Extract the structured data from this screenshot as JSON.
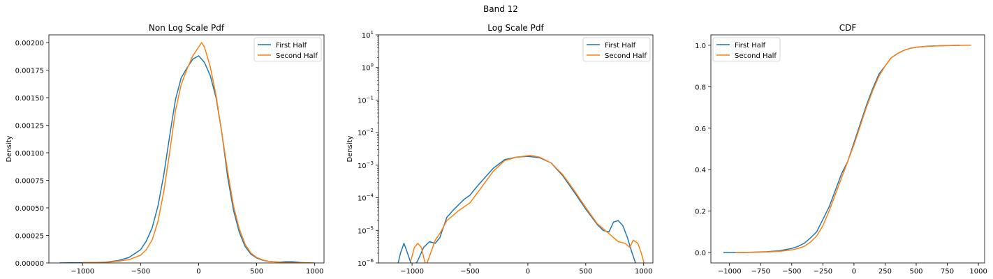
{
  "suptitle": "Band 12",
  "legend_labels": [
    "First Half",
    "Second Half"
  ],
  "colors": {
    "first": "#1f77b4",
    "second": "#ff7f0e",
    "frame": "#000000",
    "legend_border": "#cccccc"
  },
  "chart_data": [
    {
      "type": "line",
      "title": "Non Log Scale Pdf",
      "ylabel": "Density",
      "xlabel": "",
      "xlim": [
        -1290,
        1080
      ],
      "ylim": [
        0,
        0.00207
      ],
      "yscale": "linear",
      "xticks": [
        -1000,
        -500,
        0,
        500,
        1000
      ],
      "xtick_labels": [
        "−1000",
        "−500",
        "0",
        "500",
        "1000"
      ],
      "yticks": [
        0,
        0.00025,
        0.0005,
        0.00075,
        0.001,
        0.00125,
        0.0015,
        0.00175,
        0.002
      ],
      "ytick_labels": [
        "0.00000",
        "0.00025",
        "0.00050",
        "0.00075",
        "0.00100",
        "0.00125",
        "0.00150",
        "0.00175",
        "0.00200"
      ],
      "legend_loc": "upper right",
      "series": [
        {
          "name": "First Half",
          "points": [
            [
              -1200,
              3e-07
            ],
            [
              -1100,
              1e-06
            ],
            [
              -1000,
              1.5e-06
            ],
            [
              -900,
              3e-06
            ],
            [
              -800,
              7e-06
            ],
            [
              -700,
              2e-05
            ],
            [
              -600,
              5e-05
            ],
            [
              -500,
              0.00012
            ],
            [
              -450,
              0.0002
            ],
            [
              -400,
              0.00032
            ],
            [
              -350,
              0.00052
            ],
            [
              -300,
              0.0008
            ],
            [
              -250,
              0.00115
            ],
            [
              -200,
              0.00148
            ],
            [
              -150,
              0.00168
            ],
            [
              -100,
              0.00177
            ],
            [
              -50,
              0.00185
            ],
            [
              0,
              0.00188
            ],
            [
              50,
              0.00182
            ],
            [
              100,
              0.0017
            ],
            [
              150,
              0.0015
            ],
            [
              200,
              0.00118
            ],
            [
              250,
              0.00078
            ],
            [
              300,
              0.00048
            ],
            [
              350,
              0.00028
            ],
            [
              400,
              0.00015
            ],
            [
              450,
              8e-05
            ],
            [
              500,
              4.5e-05
            ],
            [
              550,
              2.5e-05
            ],
            [
              600,
              1.5e-05
            ],
            [
              650,
              1e-05
            ],
            [
              700,
              8e-06
            ],
            [
              750,
              1.2e-05
            ],
            [
              800,
              1.2e-05
            ],
            [
              850,
              7e-06
            ],
            [
              900,
              2e-06
            ],
            [
              950,
              0
            ]
          ]
        },
        {
          "name": "Second Half",
          "points": [
            [
              -1000,
              4e-06
            ],
            [
              -900,
              4e-06
            ],
            [
              -800,
              5e-06
            ],
            [
              -700,
              1.5e-05
            ],
            [
              -600,
              3e-05
            ],
            [
              -500,
              7e-05
            ],
            [
              -450,
              0.00012
            ],
            [
              -400,
              0.00021
            ],
            [
              -350,
              0.00038
            ],
            [
              -300,
              0.00065
            ],
            [
              -250,
              0.001
            ],
            [
              -200,
              0.00138
            ],
            [
              -150,
              0.00162
            ],
            [
              -100,
              0.00176
            ],
            [
              -50,
              0.00188
            ],
            [
              0,
              0.00196
            ],
            [
              25,
              0.002
            ],
            [
              50,
              0.00196
            ],
            [
              100,
              0.00178
            ],
            [
              150,
              0.00152
            ],
            [
              200,
              0.00118
            ],
            [
              250,
              0.00083
            ],
            [
              300,
              0.00052
            ],
            [
              350,
              0.00031
            ],
            [
              400,
              0.00017
            ],
            [
              450,
              9e-05
            ],
            [
              500,
              5e-05
            ],
            [
              550,
              2.8e-05
            ],
            [
              600,
              1.6e-05
            ],
            [
              650,
              1e-05
            ],
            [
              700,
              6e-06
            ],
            [
              800,
              3e-06
            ],
            [
              850,
              2e-06
            ],
            [
              900,
              3e-06
            ],
            [
              950,
              2e-06
            ],
            [
              1000,
              0
            ]
          ]
        }
      ]
    },
    {
      "type": "line",
      "title": "Log Scale Pdf",
      "ylabel": "Density",
      "xlabel": "",
      "xlim": [
        -1290,
        1080
      ],
      "ylim": [
        1e-06,
        10
      ],
      "yscale": "log",
      "xticks": [
        -1000,
        -500,
        0,
        500,
        1000
      ],
      "xtick_labels": [
        "−1000",
        "−500",
        "0",
        "500",
        "1000"
      ],
      "yticks": [
        1e-06,
        1e-05,
        0.0001,
        0.001,
        0.01,
        0.1,
        1,
        10
      ],
      "ytick_base": [
        "10",
        "10",
        "10",
        "10",
        "10",
        "10",
        "10",
        "10"
      ],
      "ytick_exp": [
        "−6",
        "−5",
        "−4",
        "−3",
        "−2",
        "−1",
        "0",
        "1"
      ],
      "legend_loc": "upper right",
      "series": [
        {
          "name": "First Half",
          "points": [
            [
              -1120,
              1e-06
            ],
            [
              -1100,
              2e-06
            ],
            [
              -1070,
              4e-06
            ],
            [
              -1040,
              2e-06
            ],
            [
              -1010,
              1e-06
            ],
            [
              -980,
              8e-07
            ],
            [
              -950,
              1.2e-06
            ],
            [
              -900,
              3e-06
            ],
            [
              -850,
              4.5e-06
            ],
            [
              -800,
              4e-06
            ],
            [
              -760,
              6e-06
            ],
            [
              -700,
              2.5e-05
            ],
            [
              -650,
              4e-05
            ],
            [
              -600,
              6e-05
            ],
            [
              -550,
              9e-05
            ],
            [
              -500,
              0.00012
            ],
            [
              -450,
              0.0002
            ],
            [
              -400,
              0.00032
            ],
            [
              -300,
              0.0008
            ],
            [
              -200,
              0.00148
            ],
            [
              -100,
              0.00177
            ],
            [
              0,
              0.00188
            ],
            [
              100,
              0.0017
            ],
            [
              200,
              0.00118
            ],
            [
              300,
              0.00048
            ],
            [
              400,
              0.00015
            ],
            [
              500,
              4.5e-05
            ],
            [
              600,
              1.5e-05
            ],
            [
              650,
              1e-05
            ],
            [
              700,
              9e-06
            ],
            [
              740,
              1.8e-05
            ],
            [
              780,
              2e-05
            ],
            [
              820,
              1.4e-05
            ],
            [
              860,
              6e-06
            ],
            [
              900,
              2e-06
            ],
            [
              930,
              1e-06
            ]
          ]
        },
        {
          "name": "Second Half",
          "points": [
            [
              -1010,
              1.2e-06
            ],
            [
              -980,
              3e-06
            ],
            [
              -950,
              4e-06
            ],
            [
              -920,
              3e-06
            ],
            [
              -900,
              1.5e-06
            ],
            [
              -880,
              8e-07
            ],
            [
              -800,
              5e-06
            ],
            [
              -760,
              8e-06
            ],
            [
              -700,
              2e-05
            ],
            [
              -650,
              2.8e-05
            ],
            [
              -600,
              4e-05
            ],
            [
              -500,
              7e-05
            ],
            [
              -400,
              0.00021
            ],
            [
              -300,
              0.00065
            ],
            [
              -200,
              0.00138
            ],
            [
              -100,
              0.00176
            ],
            [
              0,
              0.00196
            ],
            [
              25,
              0.002
            ],
            [
              100,
              0.00178
            ],
            [
              200,
              0.00118
            ],
            [
              300,
              0.00052
            ],
            [
              400,
              0.00017
            ],
            [
              500,
              5e-05
            ],
            [
              600,
              1.6e-05
            ],
            [
              700,
              8e-06
            ],
            [
              780,
              4.5e-06
            ],
            [
              840,
              4e-06
            ],
            [
              880,
              3e-06
            ],
            [
              910,
              5e-06
            ],
            [
              950,
              4e-06
            ],
            [
              980,
              2e-06
            ],
            [
              1010,
              8e-07
            ]
          ]
        }
      ]
    },
    {
      "type": "line",
      "title": "CDF",
      "ylabel": "",
      "xlabel": "",
      "xlim": [
        -1150,
        1050
      ],
      "ylim": [
        -0.05,
        1.05
      ],
      "yscale": "linear",
      "xticks": [
        -1000,
        -750,
        -500,
        -250,
        0,
        250,
        500,
        750,
        1000
      ],
      "xtick_labels": [
        "−1000",
        "−750",
        "−500",
        "−250",
        "0",
        "250",
        "500",
        "750",
        "1000"
      ],
      "yticks": [
        0,
        0.2,
        0.4,
        0.6,
        0.8,
        1.0
      ],
      "ytick_labels": [
        "0.0",
        "0.2",
        "0.4",
        "0.6",
        "0.8",
        "1.0"
      ],
      "legend_loc": "upper left",
      "series": [
        {
          "name": "First Half",
          "points": [
            [
              -1050,
              0
            ],
            [
              -900,
              0
            ],
            [
              -800,
              0.002
            ],
            [
              -700,
              0.004
            ],
            [
              -600,
              0.009
            ],
            [
              -500,
              0.02
            ],
            [
              -450,
              0.03
            ],
            [
              -400,
              0.045
            ],
            [
              -350,
              0.07
            ],
            [
              -300,
              0.1
            ],
            [
              -250,
              0.16
            ],
            [
              -200,
              0.22
            ],
            [
              -150,
              0.3
            ],
            [
              -100,
              0.38
            ],
            [
              -50,
              0.44
            ],
            [
              0,
              0.53
            ],
            [
              50,
              0.62
            ],
            [
              100,
              0.71
            ],
            [
              150,
              0.79
            ],
            [
              200,
              0.86
            ],
            [
              250,
              0.9
            ],
            [
              300,
              0.94
            ],
            [
              350,
              0.96
            ],
            [
              400,
              0.975
            ],
            [
              450,
              0.985
            ],
            [
              500,
              0.99
            ],
            [
              600,
              0.996
            ],
            [
              700,
              0.998
            ],
            [
              850,
              1.0
            ]
          ]
        },
        {
          "name": "Second Half",
          "points": [
            [
              -950,
              0
            ],
            [
              -800,
              0.001
            ],
            [
              -700,
              0.003
            ],
            [
              -600,
              0.006
            ],
            [
              -500,
              0.013
            ],
            [
              -450,
              0.02
            ],
            [
              -400,
              0.03
            ],
            [
              -350,
              0.05
            ],
            [
              -300,
              0.08
            ],
            [
              -250,
              0.13
            ],
            [
              -200,
              0.2
            ],
            [
              -150,
              0.28
            ],
            [
              -100,
              0.36
            ],
            [
              -50,
              0.44
            ],
            [
              0,
              0.52
            ],
            [
              50,
              0.61
            ],
            [
              100,
              0.7
            ],
            [
              150,
              0.78
            ],
            [
              200,
              0.85
            ],
            [
              250,
              0.9
            ],
            [
              300,
              0.94
            ],
            [
              350,
              0.96
            ],
            [
              400,
              0.975
            ],
            [
              450,
              0.985
            ],
            [
              500,
              0.99
            ],
            [
              600,
              0.995
            ],
            [
              700,
              0.998
            ],
            [
              800,
              0.999
            ],
            [
              900,
              1.0
            ],
            [
              940,
              1.0
            ]
          ]
        }
      ]
    }
  ]
}
